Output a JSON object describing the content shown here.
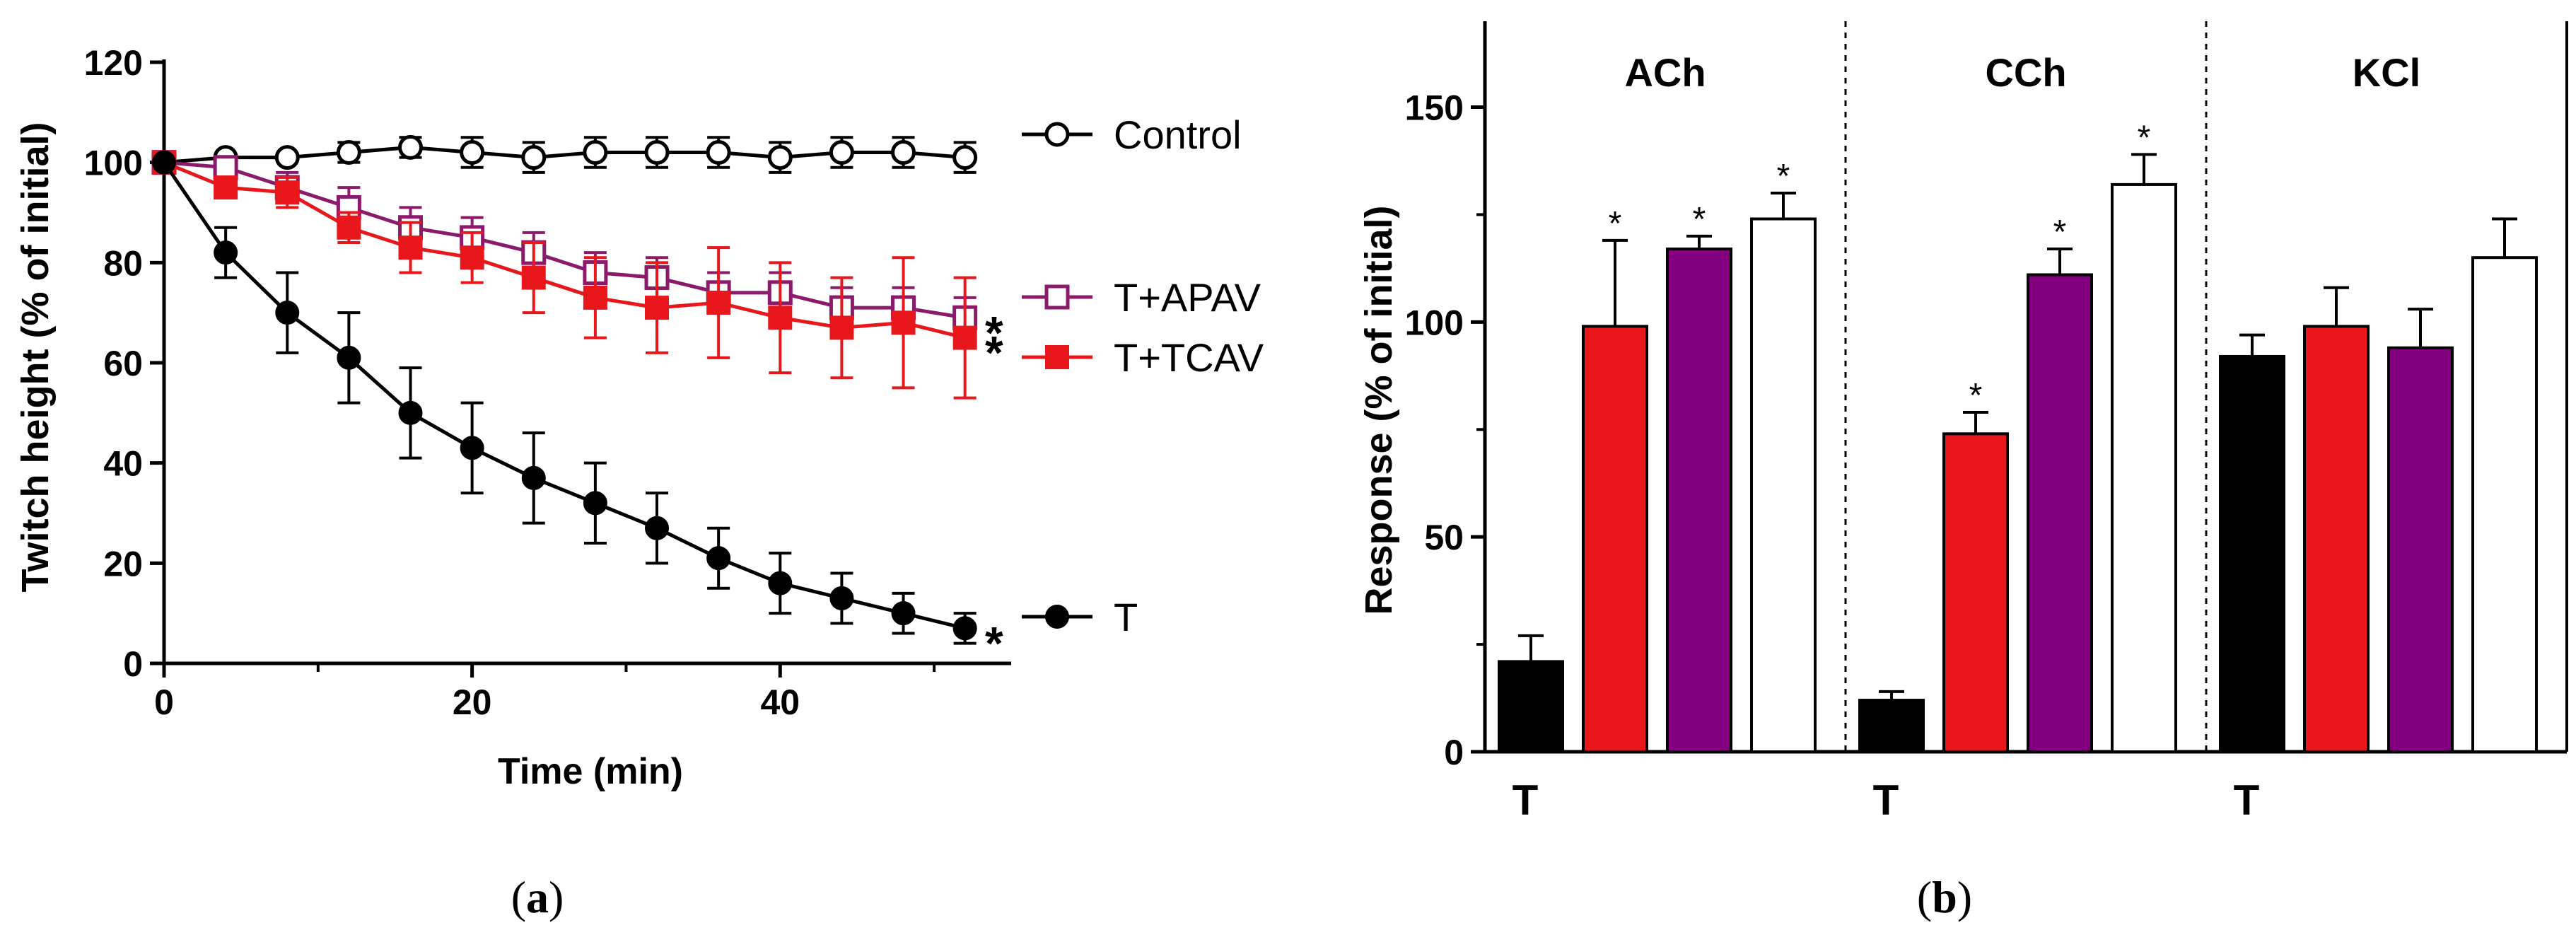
{
  "chart_data": [
    {
      "type": "line",
      "panel_label": "a",
      "title": "",
      "xlabel": "Time (min)",
      "ylabel": "Twitch height (% of initial)",
      "xlim": [
        0,
        55
      ],
      "ylim": [
        0,
        120
      ],
      "xticks": [
        0,
        20,
        40
      ],
      "yticks": [
        0,
        20,
        40,
        60,
        80,
        100,
        120
      ],
      "x": [
        0,
        4,
        8,
        12,
        16,
        20,
        24,
        28,
        32,
        36,
        40,
        44,
        48,
        52
      ],
      "series": [
        {
          "name": "Control",
          "color": "#000000",
          "marker": "open-circle",
          "values": [
            100,
            101,
            101,
            102,
            103,
            102,
            101,
            102,
            102,
            102,
            101,
            102,
            102,
            101
          ],
          "errors": [
            1,
            1.5,
            1.5,
            2,
            2,
            3,
            3,
            3,
            3,
            3,
            3,
            3,
            3,
            3
          ],
          "significance": ""
        },
        {
          "name": "T+APAV",
          "color": "#8b1a6b",
          "marker": "open-square",
          "values": [
            100,
            99,
            95,
            91,
            87,
            85,
            82,
            78,
            77,
            74,
            74,
            71,
            71,
            69
          ],
          "errors": [
            1,
            2,
            3,
            4,
            4,
            4,
            4,
            4,
            4,
            4,
            4,
            4,
            4,
            4
          ],
          "significance": "*"
        },
        {
          "name": "T+TCAV",
          "color": "#e8171b",
          "marker": "filled-square",
          "values": [
            100,
            95,
            94,
            87,
            83,
            81,
            77,
            73,
            71,
            72,
            69,
            67,
            68,
            65
          ],
          "errors": [
            1,
            2,
            3,
            3,
            5,
            5,
            7,
            8,
            9,
            11,
            11,
            10,
            13,
            12
          ],
          "significance": "*"
        },
        {
          "name": "T",
          "color": "#000000",
          "marker": "filled-circle",
          "values": [
            100,
            82,
            70,
            61,
            50,
            43,
            37,
            32,
            27,
            21,
            16,
            13,
            10,
            7
          ],
          "errors": [
            1,
            5,
            8,
            9,
            9,
            9,
            9,
            8,
            7,
            6,
            6,
            5,
            4,
            3
          ],
          "significance": "*"
        }
      ]
    },
    {
      "type": "bar",
      "panel_label": "b",
      "title": "",
      "xlabel": "",
      "ylabel": "Response (% of initial)",
      "ylim": [
        0,
        170
      ],
      "yticks": [
        0,
        50,
        100,
        150
      ],
      "groups": [
        {
          "name": "ACh",
          "base_label": "T",
          "bars": [
            {
              "color": "#000000",
              "value": 21,
              "error": 6,
              "significance": ""
            },
            {
              "color": "#e8171b",
              "value": 99,
              "error": 20,
              "significance": "*"
            },
            {
              "color": "#820080",
              "value": 117,
              "error": 3,
              "significance": "*"
            },
            {
              "color": "#ffffff",
              "value": 124,
              "error": 6,
              "significance": "*"
            }
          ]
        },
        {
          "name": "CCh",
          "base_label": "T",
          "bars": [
            {
              "color": "#000000",
              "value": 12,
              "error": 2,
              "significance": ""
            },
            {
              "color": "#e8171b",
              "value": 74,
              "error": 5,
              "significance": "*"
            },
            {
              "color": "#820080",
              "value": 111,
              "error": 6,
              "significance": "*"
            },
            {
              "color": "#ffffff",
              "value": 132,
              "error": 7,
              "significance": "*"
            }
          ]
        },
        {
          "name": "KCl",
          "base_label": "T",
          "bars": [
            {
              "color": "#000000",
              "value": 92,
              "error": 5,
              "significance": ""
            },
            {
              "color": "#e8171b",
              "value": 99,
              "error": 9,
              "significance": ""
            },
            {
              "color": "#820080",
              "value": 94,
              "error": 9,
              "significance": ""
            },
            {
              "color": "#ffffff",
              "value": 115,
              "error": 9,
              "significance": ""
            }
          ]
        }
      ]
    }
  ]
}
